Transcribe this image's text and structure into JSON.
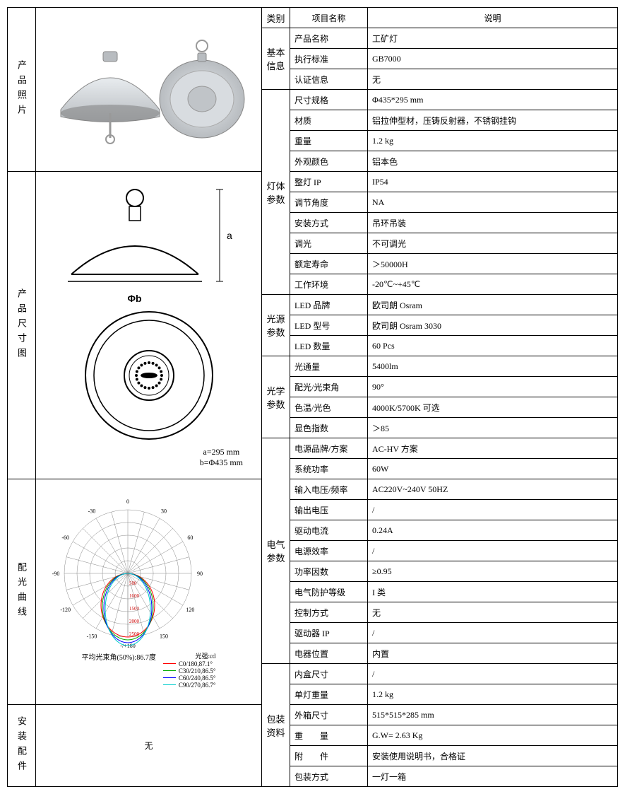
{
  "headers": {
    "category": "类别",
    "item": "项目名称",
    "desc": "说明"
  },
  "left_labels": {
    "photo": "产品照片",
    "dims": "产品尺寸图",
    "curve": "配光曲线",
    "install": "安装配件"
  },
  "left_content": {
    "dim_a": "a=295 mm",
    "dim_b": "b=Φ435 mm",
    "phi_b": "Φb",
    "dim_letter_a": "a",
    "install_value": "无",
    "polar_title": "平均光束角(50%):86.7度",
    "polar_unit": "光强:cd",
    "polar_angles": [
      "-/+180",
      "-150",
      "150",
      "-120",
      "120",
      "-90",
      "90",
      "-60",
      "60",
      "-30",
      "30",
      "0"
    ],
    "polar_rings": [
      "500",
      "1000",
      "1500",
      "2000",
      "2500"
    ],
    "polar_legend": [
      {
        "label": "C0/180,87.1°",
        "color": "#ff0000"
      },
      {
        "label": "C30/210,86.5°",
        "color": "#00aa00"
      },
      {
        "label": "C60/240,86.5°",
        "color": "#0000ff"
      },
      {
        "label": "C90/270,86.7°",
        "color": "#00cccc"
      }
    ]
  },
  "sections": [
    {
      "cat": "基本信息",
      "rows": [
        {
          "k": "产品名称",
          "v": "工矿灯"
        },
        {
          "k": "执行标准",
          "v": "GB7000"
        },
        {
          "k": "认证信息",
          "v": "无"
        }
      ]
    },
    {
      "cat": "灯体参数",
      "rows": [
        {
          "k": "尺寸规格",
          "v": "Φ435*295 mm"
        },
        {
          "k": "材质",
          "v": "铝拉伸型材，压铸反射器，不锈钢挂钩"
        },
        {
          "k": "重量",
          "v": "1.2 kg"
        },
        {
          "k": "外观颜色",
          "v": "铝本色"
        },
        {
          "k": "整灯 IP",
          "v": "IP54"
        },
        {
          "k": "调节角度",
          "v": "NA"
        },
        {
          "k": "安装方式",
          "v": "吊环吊装"
        },
        {
          "k": "调光",
          "v": "不可调光"
        },
        {
          "k": "额定寿命",
          "v": "＞50000H"
        },
        {
          "k": "工作环境",
          "v": "-20℃~+45℃"
        }
      ]
    },
    {
      "cat": "光源参数",
      "rows": [
        {
          "k": "LED 品牌",
          "v": "欧司朗 Osram"
        },
        {
          "k": "LED 型号",
          "v": "欧司朗 Osram  3030"
        },
        {
          "k": "LED 数量",
          "v": "60 Pcs"
        }
      ]
    },
    {
      "cat": "光学参数",
      "rows": [
        {
          "k": "光通量",
          "v": "5400lm"
        },
        {
          "k": "配光/光束角",
          "v": "90°"
        },
        {
          "k": "色温/光色",
          "v": "4000K/5700K 可选"
        },
        {
          "k": "显色指数",
          "v": "＞85"
        }
      ]
    },
    {
      "cat": "电气参数",
      "rows": [
        {
          "k": "电源品牌/方案",
          "v": "AC-HV 方案"
        },
        {
          "k": "系统功率",
          "v": "60W"
        },
        {
          "k": "输入电压/频率",
          "v": "AC220V~240V 50HZ"
        },
        {
          "k": "输出电压",
          "v": "/"
        },
        {
          "k": "驱动电流",
          "v": "0.24A"
        },
        {
          "k": "电源效率",
          "v": "/"
        },
        {
          "k": "功率因数",
          "v": "≥0.95"
        },
        {
          "k": "电气防护等级",
          "v": "I 类"
        },
        {
          "k": "控制方式",
          "v": "无"
        },
        {
          "k": "驱动器 IP",
          "v": "/"
        },
        {
          "k": "电器位置",
          "v": "内置"
        }
      ]
    },
    {
      "cat": "包装资料",
      "rows": [
        {
          "k": "内盒尺寸",
          "v": "/"
        },
        {
          "k": "单灯重量",
          "v": "1.2 kg"
        },
        {
          "k": "外箱尺寸",
          "v": "515*515*285 mm"
        },
        {
          "k": "重　　量",
          "v": "G.W= 2.63 Kg"
        },
        {
          "k": "附　　件",
          "v": "安装使用说明书，合格证"
        },
        {
          "k": "包装方式",
          "v": "一灯一箱"
        }
      ]
    }
  ],
  "diagram_colors": {
    "lamp_body": "#b8bcc0",
    "lamp_highlight": "#e8ecef",
    "outline": "#333333"
  }
}
